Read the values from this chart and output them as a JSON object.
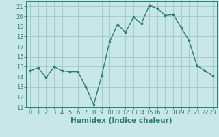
{
  "x": [
    0,
    1,
    2,
    3,
    4,
    5,
    6,
    7,
    8,
    9,
    10,
    11,
    12,
    13,
    14,
    15,
    16,
    17,
    18,
    19,
    20,
    21,
    22,
    23
  ],
  "y": [
    14.6,
    14.9,
    13.9,
    15.0,
    14.6,
    14.5,
    14.5,
    13.0,
    11.2,
    14.1,
    17.5,
    19.2,
    18.4,
    19.9,
    19.3,
    21.1,
    20.8,
    20.1,
    20.2,
    18.9,
    17.6,
    15.1,
    14.6,
    14.1
  ],
  "line_color": "#2e7d6e",
  "marker_color": "#2e7d6e",
  "bg_color": "#c8e8e8",
  "grid_color": "#a0c8c8",
  "xlabel": "Humidex (Indice chaleur)",
  "ylim": [
    11,
    21.5
  ],
  "xlim": [
    -0.5,
    23.5
  ],
  "yticks": [
    11,
    12,
    13,
    14,
    15,
    16,
    17,
    18,
    19,
    20,
    21
  ],
  "xticks": [
    0,
    1,
    2,
    3,
    4,
    5,
    6,
    7,
    8,
    9,
    10,
    11,
    12,
    13,
    14,
    15,
    16,
    17,
    18,
    19,
    20,
    21,
    22,
    23
  ],
  "tick_fontsize": 6.0,
  "xlabel_fontsize": 7.5,
  "line_width": 1.0,
  "marker_size": 2.2
}
